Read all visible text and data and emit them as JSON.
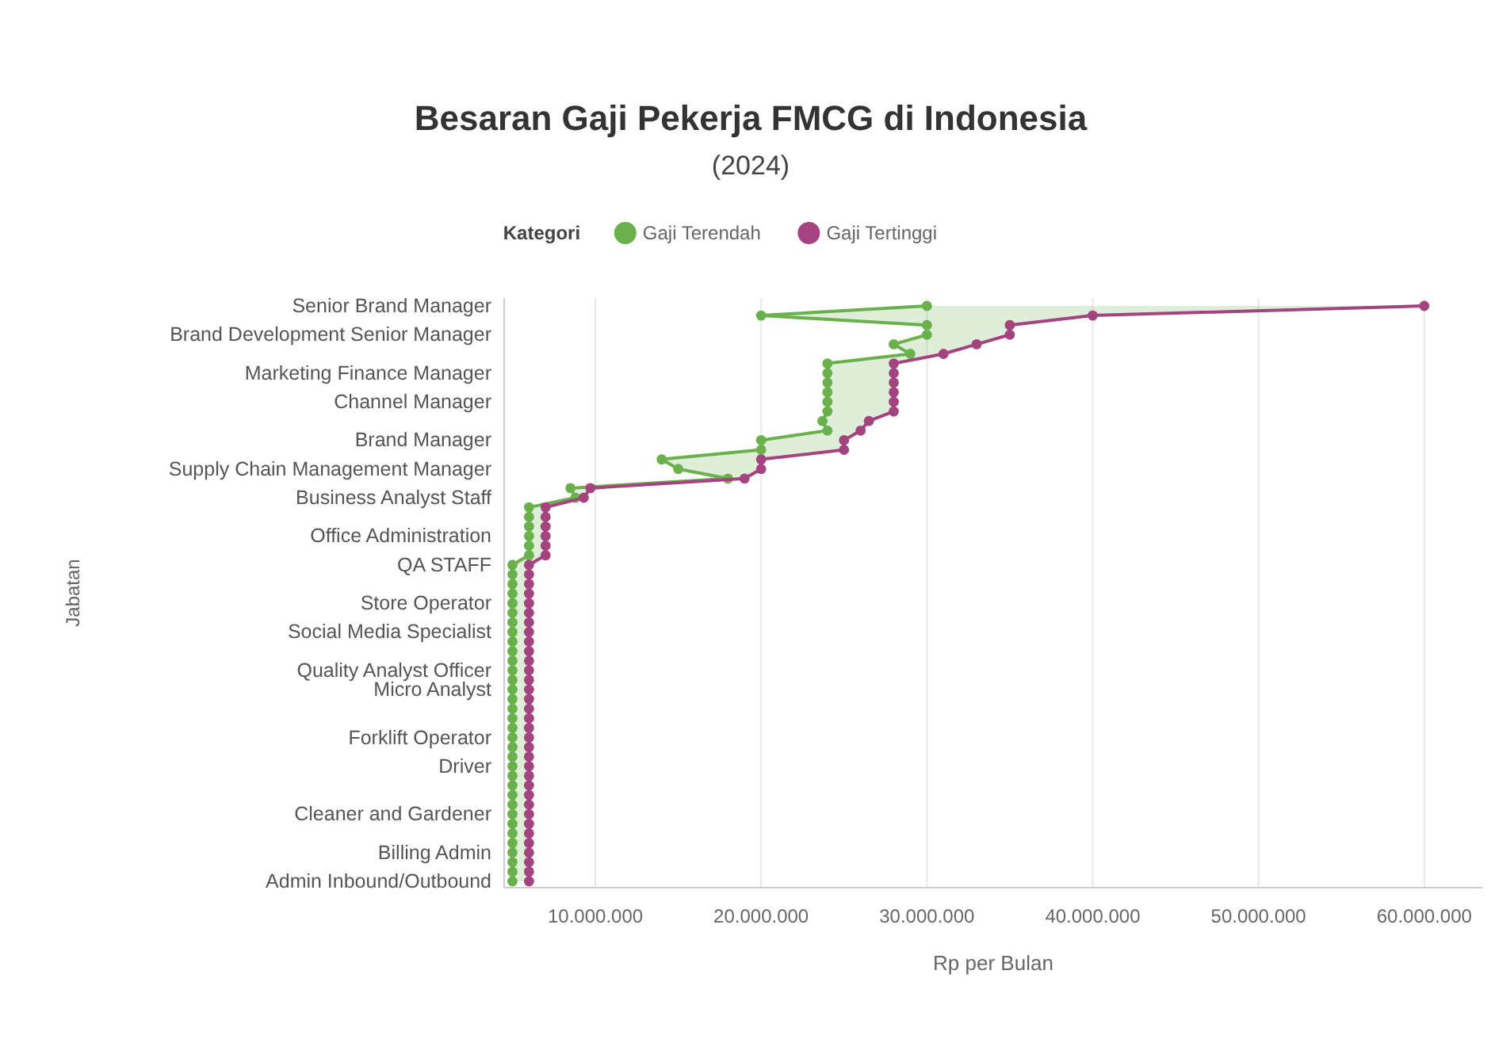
{
  "chart_data": {
    "type": "line",
    "title": "Besaran Gaji Pekerja FMCG di Indonesia",
    "subtitle": "(2024)",
    "xlabel": "Rp per Bulan",
    "ylabel": "Jabatan",
    "legend_title": "Kategori",
    "legend": "top",
    "orientation": "horizontal",
    "grid": "x",
    "marker": "circle",
    "line_style": "solid",
    "categories": [
      "Senior Brand Manager",
      null,
      null,
      "Brand Development Senior Manager",
      null,
      null,
      null,
      "Marketing Finance Manager",
      null,
      null,
      "Channel Manager",
      null,
      null,
      null,
      "Brand Manager",
      null,
      null,
      "Supply Chain Management Manager",
      null,
      null,
      "Business Analyst Staff",
      null,
      null,
      null,
      "Office Administration",
      null,
      null,
      "QA STAFF",
      null,
      null,
      null,
      "Store Operator",
      null,
      null,
      "Social Media Specialist",
      null,
      null,
      null,
      "Quality Analyst Officer",
      null,
      "Micro Analyst",
      null,
      null,
      null,
      null,
      "Forklift Operator",
      null,
      null,
      "Driver",
      null,
      null,
      null,
      null,
      "Cleaner and Gardener",
      null,
      null,
      null,
      "Billing Admin",
      null,
      null,
      "Admin Inbound/Outbound"
    ],
    "xlim": [
      4500000,
      63500000
    ],
    "xticks": [
      {
        "value": 10000000,
        "label": "10.000.000"
      },
      {
        "value": 20000000,
        "label": "20.000.000"
      },
      {
        "value": 30000000,
        "label": "30.000.000"
      },
      {
        "value": 40000000,
        "label": "40.000.000"
      },
      {
        "value": 50000000,
        "label": "50.000.000"
      },
      {
        "value": 60000000,
        "label": "60.000.000"
      }
    ],
    "series": [
      {
        "name": "Gaji Terendah",
        "color": "#6ab04c",
        "values": [
          30000000,
          20000000,
          30000000,
          30000000,
          28000000,
          29000000,
          24000000,
          24000000,
          24000000,
          24000000,
          24000000,
          24000000,
          23700000,
          24000000,
          20000000,
          20000000,
          14000000,
          15000000,
          18000000,
          8500000,
          8800000,
          6000000,
          6000000,
          6000000,
          6000000,
          6000000,
          6000000,
          5000000,
          5000000,
          5000000,
          5000000,
          5000000,
          5000000,
          5000000,
          5000000,
          5000000,
          5000000,
          5000000,
          5000000,
          5000000,
          5000000,
          5000000,
          5000000,
          5000000,
          5000000,
          5000000,
          5000000,
          5000000,
          5000000,
          5000000,
          5000000,
          5000000,
          5000000,
          5000000,
          5000000,
          5000000,
          5000000,
          5000000,
          5000000,
          5000000,
          5000000
        ],
        "lower": [
          30000000,
          20000000,
          30000000,
          30000000,
          28000000,
          29000000,
          24000000,
          24000000,
          24000000,
          24000000,
          24000000,
          24000000,
          23700000,
          24000000,
          20000000,
          20000000,
          14000000,
          15000000,
          18000000,
          8500000,
          8800000,
          6000000,
          6000000,
          6000000,
          6000000,
          6000000,
          6000000,
          5000000,
          5000000,
          5000000,
          5000000,
          5000000,
          5000000,
          5000000,
          5000000,
          5000000,
          5000000,
          5000000,
          5000000,
          5000000,
          5000000,
          5000000,
          5000000,
          5000000,
          5000000,
          5000000,
          5000000,
          5000000,
          5000000,
          5000000,
          5000000,
          5000000,
          5000000,
          5000000,
          5000000,
          5000000,
          5000000,
          5000000,
          5000000,
          5000000,
          5000000
        ],
        "upper": [
          60000000,
          40000000,
          35000000,
          35000000,
          33000000,
          31000000,
          28000000,
          28000000,
          28000000,
          28000000,
          28000000,
          28000000,
          26500000,
          26000000,
          25000000,
          25000000,
          20000000,
          20000000,
          19000000,
          9700000,
          9300000,
          7000000,
          7000000,
          7000000,
          7000000,
          7000000,
          7000000,
          6000000,
          6000000,
          6000000,
          6000000,
          6000000,
          6000000,
          6000000,
          6000000,
          6000000,
          6000000,
          6000000,
          6000000,
          6000000,
          6000000,
          6000000,
          6000000,
          6000000,
          6000000,
          6000000,
          6000000,
          6000000,
          6000000,
          6000000,
          6000000,
          6000000,
          6000000,
          6000000,
          6000000,
          6000000,
          6000000,
          6000000,
          6000000,
          6000000,
          6000000
        ]
      },
      {
        "name": "Gaji Tertinggi",
        "color": "#a3437f",
        "values": [
          60000000,
          40000000,
          35000000,
          35000000,
          33000000,
          31000000,
          28000000,
          28000000,
          28000000,
          28000000,
          28000000,
          28000000,
          26500000,
          26000000,
          25000000,
          25000000,
          20000000,
          20000000,
          19000000,
          9700000,
          9300000,
          7000000,
          7000000,
          7000000,
          7000000,
          7000000,
          7000000,
          6000000,
          6000000,
          6000000,
          6000000,
          6000000,
          6000000,
          6000000,
          6000000,
          6000000,
          6000000,
          6000000,
          6000000,
          6000000,
          6000000,
          6000000,
          6000000,
          6000000,
          6000000,
          6000000,
          6000000,
          6000000,
          6000000,
          6000000,
          6000000,
          6000000,
          6000000,
          6000000,
          6000000,
          6000000,
          6000000,
          6000000,
          6000000,
          6000000,
          6000000
        ]
      }
    ]
  }
}
